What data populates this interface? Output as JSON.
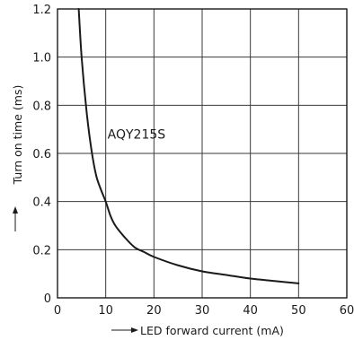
{
  "chart_data": {
    "type": "line",
    "xlabel": "LED forward current (mA)",
    "ylabel": "Turn on time (ms)",
    "xlim": [
      0,
      60
    ],
    "ylim": [
      0,
      1.2
    ],
    "x_ticks": [
      0,
      10,
      20,
      30,
      40,
      50,
      60
    ],
    "y_ticks": [
      0,
      0.2,
      0.4,
      0.6,
      0.8,
      1.0,
      1.2
    ],
    "x_tick_labels": [
      "0",
      "10",
      "20",
      "30",
      "40",
      "50",
      "60"
    ],
    "y_tick_labels": [
      "0",
      "0.2",
      "0.4",
      "0.6",
      "0.8",
      "1.0",
      "1.2"
    ],
    "grid": true,
    "series": [
      {
        "name": "AQY215S",
        "color": "#1a1a1a",
        "x": [
          4.4,
          5,
          6,
          7,
          8,
          9,
          10,
          11,
          12,
          14,
          16,
          18,
          20,
          25,
          30,
          35,
          40,
          45,
          50
        ],
        "y": [
          1.2,
          1.0,
          0.78,
          0.62,
          0.51,
          0.45,
          0.4,
          0.34,
          0.3,
          0.25,
          0.21,
          0.19,
          0.17,
          0.135,
          0.11,
          0.095,
          0.08,
          0.07,
          0.06
        ]
      }
    ],
    "annotations": [
      {
        "text": "AQY215S",
        "x": 10,
        "y": 0.68
      }
    ]
  }
}
